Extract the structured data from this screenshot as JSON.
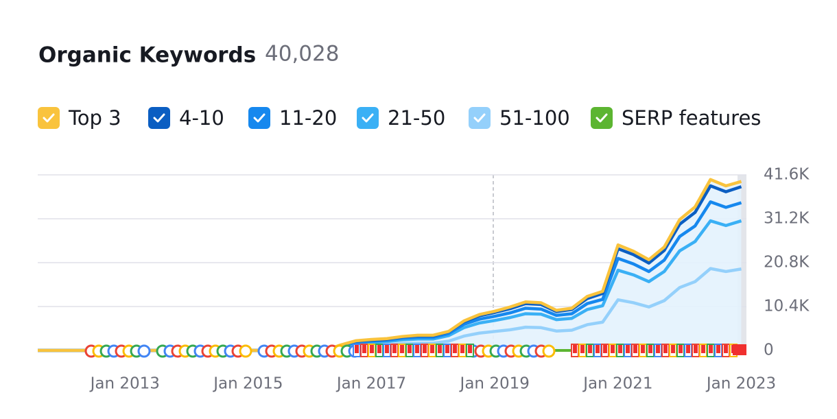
{
  "header": {
    "title": "Organic Keywords",
    "total": "40,028"
  },
  "chart_data": {
    "type": "stacked-line",
    "x": [
      "Aug 2011",
      "Jan 2016",
      "Apr 2016",
      "Jul 2016",
      "Oct 2016",
      "Jan 2017",
      "Apr 2017",
      "Jul 2017",
      "Oct 2017",
      "Jan 2018",
      "Apr 2018",
      "Jul 2018",
      "Oct 2018",
      "Jan 2019",
      "Apr 2019",
      "Jul 2019",
      "Oct 2019",
      "Jan 2020",
      "Apr 2020",
      "Jul 2020",
      "Oct 2020",
      "Jan 2021",
      "Apr 2021",
      "Jul 2021",
      "Oct 2021",
      "Jan 2022",
      "Apr 2022",
      "Jul 2022",
      "Oct 2022",
      "Jan 2023"
    ],
    "xlim": [
      "Aug 2011",
      "Feb 2023"
    ],
    "xticks": [
      "Jan 2013",
      "Jan 2015",
      "Jan 2017",
      "Jan 2019",
      "Jan 2021",
      "Jan 2023"
    ],
    "ylim": [
      0,
      41600
    ],
    "yticks": [
      0,
      {
        "value": 10400,
        "label": "10.4K"
      },
      {
        "value": 20800,
        "label": "20.8K"
      },
      {
        "value": 31200,
        "label": "31.2K"
      },
      {
        "value": 41600,
        "label": "41.6K"
      }
    ],
    "grid": true,
    "series": [
      {
        "name": "Top 3",
        "color": "#f9c33d",
        "values": [
          0,
          0,
          0,
          50,
          100,
          150,
          150,
          100,
          150,
          150,
          100,
          200,
          300,
          300,
          400,
          400,
          400,
          300,
          300,
          500,
          500,
          900,
          800,
          800,
          800,
          1100,
          1300,
          1500,
          1400,
          1228
        ]
      },
      {
        "name": "4-10",
        "color": "#0b5ec2",
        "values": [
          0,
          0,
          0,
          100,
          250,
          250,
          250,
          300,
          350,
          350,
          400,
          600,
          800,
          900,
          1000,
          1100,
          1100,
          900,
          1000,
          1200,
          1400,
          2300,
          2200,
          2000,
          2300,
          2900,
          3200,
          3800,
          3700,
          3800
        ]
      },
      {
        "name": "11-20",
        "color": "#1688ee",
        "values": [
          0,
          0,
          0,
          150,
          250,
          300,
          300,
          400,
          400,
          400,
          500,
          800,
          900,
          1000,
          1100,
          1300,
          1200,
          1000,
          1100,
          1400,
          1500,
          2800,
          2600,
          2400,
          2700,
          3400,
          3700,
          4500,
          4300,
          4300
        ]
      },
      {
        "name": "21-50",
        "color": "#3ab0f5",
        "values": [
          0,
          0,
          0,
          400,
          600,
          700,
          800,
          900,
          1000,
          1000,
          1300,
          2000,
          2400,
          2600,
          2900,
          3200,
          3200,
          2700,
          2800,
          3600,
          3900,
          7000,
          6600,
          6000,
          6900,
          8700,
          9500,
          11300,
          10900,
          11400
        ]
      },
      {
        "name": "51-100",
        "color": "#94d0fb",
        "values": [
          0,
          0,
          0,
          600,
          1100,
          1200,
          1300,
          1600,
          1700,
          1700,
          2200,
          3400,
          4100,
          4500,
          4900,
          5500,
          5400,
          4600,
          4800,
          6100,
          6700,
          12000,
          11300,
          10300,
          11800,
          14900,
          16300,
          19400,
          18700,
          19300
        ]
      },
      {
        "name": "SERP features",
        "color": "#5cb531",
        "values": [
          0,
          0,
          0,
          0,
          0,
          0,
          0,
          0,
          0,
          0,
          0,
          0,
          0,
          0,
          0,
          0,
          0,
          0,
          0,
          0,
          0,
          0,
          0,
          0,
          0,
          0,
          0,
          0,
          0,
          0
        ]
      }
    ]
  }
}
